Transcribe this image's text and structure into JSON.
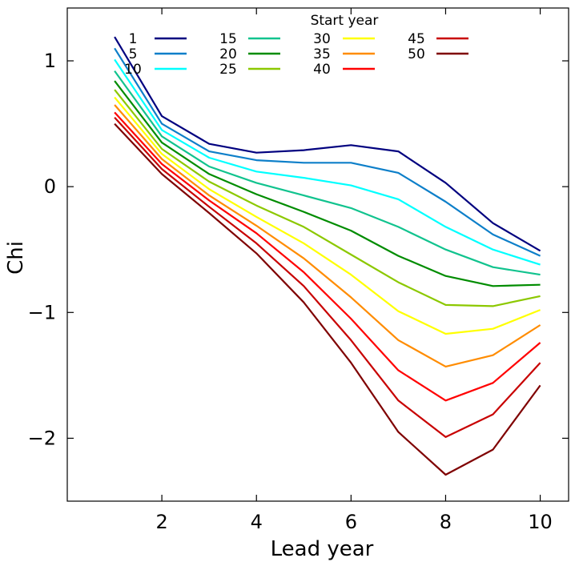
{
  "chart_data": {
    "type": "line",
    "xlabel": "Lead year",
    "ylabel": "Chi",
    "xlim": [
      0.0,
      10.6
    ],
    "ylim": [
      -2.5,
      1.42
    ],
    "xticks": [
      2,
      4,
      6,
      8,
      10
    ],
    "xtick_labels": [
      "2",
      "4",
      "6",
      "8",
      "10"
    ],
    "yticks": [
      -2,
      -1,
      0,
      1
    ],
    "ytick_labels": [
      "−2",
      "−1",
      "0",
      "1"
    ],
    "grid": false,
    "legend": {
      "title": "Start year",
      "placement": "top"
    },
    "x": [
      1,
      2,
      3,
      4,
      5,
      6,
      7,
      8,
      9,
      10
    ],
    "series": [
      {
        "name": "1",
        "color": "#00007f",
        "values": [
          1.19,
          0.56,
          0.34,
          0.27,
          0.29,
          0.33,
          0.28,
          0.03,
          -0.29,
          -0.51
        ]
      },
      {
        "name": "5",
        "color": "#0d7fc9",
        "values": [
          1.1,
          0.5,
          0.28,
          0.21,
          0.19,
          0.19,
          0.11,
          -0.12,
          -0.38,
          -0.55
        ]
      },
      {
        "name": "10",
        "color": "#00ffff",
        "values": [
          1.01,
          0.45,
          0.23,
          0.12,
          0.07,
          0.01,
          -0.1,
          -0.32,
          -0.5,
          -0.62
        ]
      },
      {
        "name": "15",
        "color": "#11c38e",
        "values": [
          0.92,
          0.4,
          0.16,
          0.03,
          -0.07,
          -0.17,
          -0.32,
          -0.5,
          -0.64,
          -0.7
        ]
      },
      {
        "name": "20",
        "color": "#008c00",
        "values": [
          0.84,
          0.35,
          0.1,
          -0.06,
          -0.2,
          -0.35,
          -0.55,
          -0.71,
          -0.79,
          -0.78
        ]
      },
      {
        "name": "25",
        "color": "#8cc800",
        "values": [
          0.77,
          0.3,
          0.04,
          -0.15,
          -0.32,
          -0.54,
          -0.76,
          -0.94,
          -0.95,
          -0.87
        ]
      },
      {
        "name": "30",
        "color": "#ffff00",
        "values": [
          0.71,
          0.26,
          -0.02,
          -0.24,
          -0.45,
          -0.7,
          -0.99,
          -1.17,
          -1.13,
          -0.98
        ]
      },
      {
        "name": "35",
        "color": "#ff8c00",
        "values": [
          0.65,
          0.22,
          -0.07,
          -0.31,
          -0.57,
          -0.88,
          -1.22,
          -1.43,
          -1.34,
          -1.1
        ]
      },
      {
        "name": "40",
        "color": "#ff0000",
        "values": [
          0.59,
          0.18,
          -0.11,
          -0.37,
          -0.68,
          -1.05,
          -1.46,
          -1.7,
          -1.56,
          -1.24
        ]
      },
      {
        "name": "45",
        "color": "#c80000",
        "values": [
          0.55,
          0.14,
          -0.16,
          -0.45,
          -0.79,
          -1.22,
          -1.7,
          -1.99,
          -1.81,
          -1.4
        ]
      },
      {
        "name": "50",
        "color": "#7f0000",
        "values": [
          0.5,
          0.1,
          -0.21,
          -0.53,
          -0.92,
          -1.4,
          -1.95,
          -2.29,
          -2.09,
          -1.58
        ]
      }
    ]
  }
}
